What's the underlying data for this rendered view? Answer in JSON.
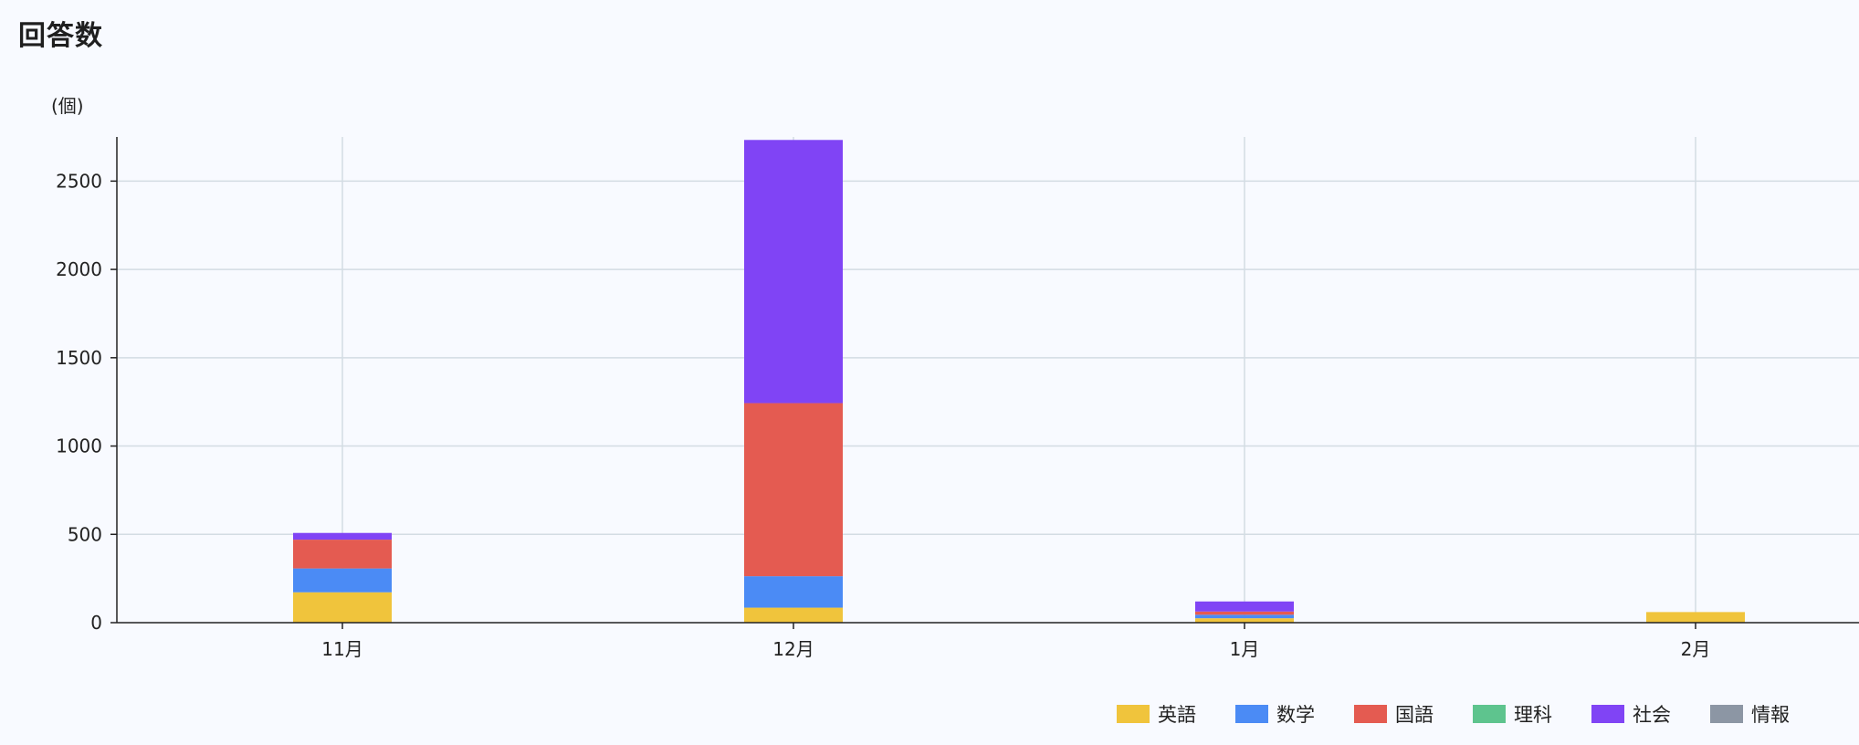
{
  "page": {
    "title": "回答数"
  },
  "chart_data": {
    "type": "bar",
    "stacked": true,
    "title": "",
    "xlabel": "",
    "ylabel": "(個)",
    "categories": [
      "11月",
      "12月",
      "1月",
      "2月"
    ],
    "ylim": [
      0,
      2750
    ],
    "yticks": [
      0,
      500,
      1000,
      1500,
      2000,
      2500
    ],
    "grid": true,
    "legend_position": "bottom-right",
    "series": [
      {
        "name": "英語",
        "color": "#f0c43c",
        "values": [
          172,
          85,
          25,
          60
        ]
      },
      {
        "name": "数学",
        "color": "#4b8bf5",
        "values": [
          135,
          178,
          20,
          0
        ]
      },
      {
        "name": "国語",
        "color": "#e45b51",
        "values": [
          163,
          980,
          18,
          0
        ]
      },
      {
        "name": "理科",
        "color": "#5ec48e",
        "values": [
          0,
          0,
          0,
          0
        ]
      },
      {
        "name": "社会",
        "color": "#8044f5",
        "values": [
          38,
          1490,
          57,
          0
        ]
      },
      {
        "name": "情報",
        "color": "#8c96a4",
        "values": [
          0,
          0,
          0,
          0
        ]
      }
    ]
  }
}
